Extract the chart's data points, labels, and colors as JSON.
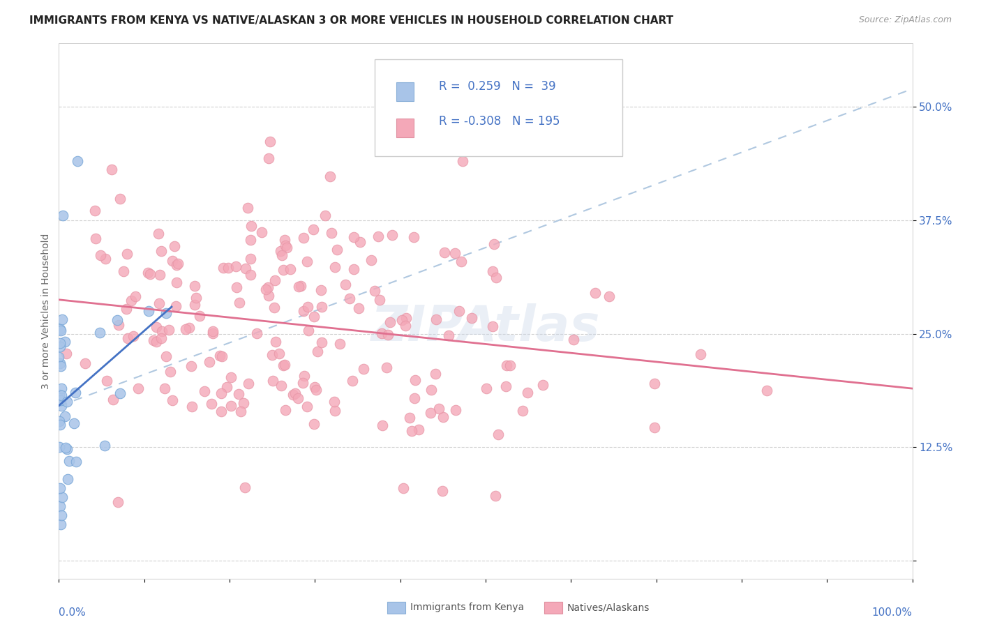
{
  "title": "IMMIGRANTS FROM KENYA VS NATIVE/ALASKAN 3 OR MORE VEHICLES IN HOUSEHOLD CORRELATION CHART",
  "source": "Source: ZipAtlas.com",
  "ylabel": "3 or more Vehicles in Household",
  "xlim": [
    0.0,
    1.0
  ],
  "ylim": [
    -0.02,
    0.57
  ],
  "yticks": [
    0.0,
    0.125,
    0.25,
    0.375,
    0.5
  ],
  "ytick_labels": [
    "",
    "12.5%",
    "25.0%",
    "37.5%",
    "50.0%"
  ],
  "color_kenya_fill": "#a8c4e8",
  "color_native_fill": "#f4a8b8",
  "color_kenya_line": "#4472c4",
  "color_native_line": "#e07090",
  "color_dash_line": "#b0c8e0",
  "background_color": "#ffffff",
  "watermark": "ZIPAtlas",
  "title_fontsize": 11,
  "axis_label_fontsize": 10,
  "tick_fontsize": 11,
  "legend_fontsize": 12,
  "tick_color": "#4472c4",
  "legend_r_color": "#333333",
  "legend_n_color": "#4472c4"
}
